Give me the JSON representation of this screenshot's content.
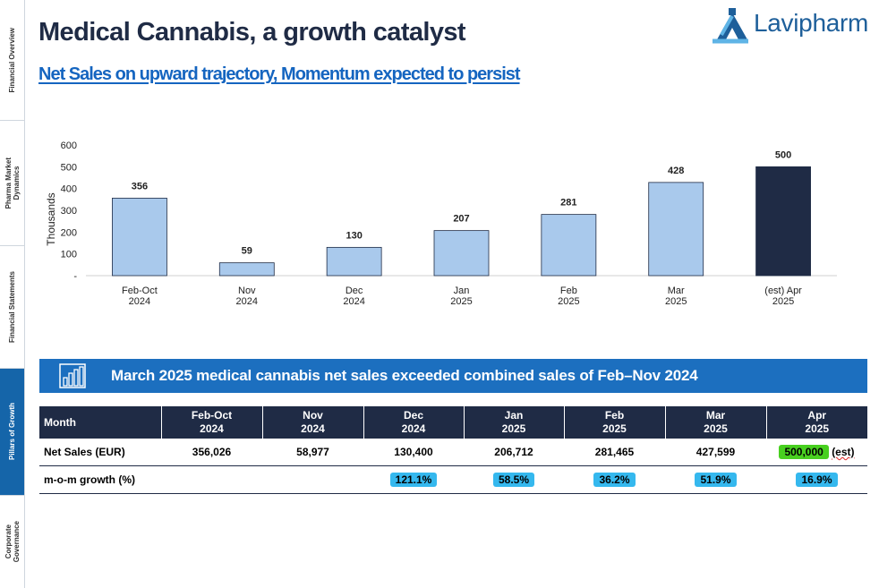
{
  "rail": {
    "tabs": [
      {
        "label": "Financial Overview",
        "active": false
      },
      {
        "label": "Pharma Market\nDynamics",
        "active": false
      },
      {
        "label": "Financial Statements",
        "active": false
      },
      {
        "label": "Pillars of Growth",
        "active": true
      },
      {
        "label": "Corporate\nGovernance",
        "active": false
      }
    ]
  },
  "header": {
    "title": "Medical Cannabis, a growth catalyst",
    "subtitle": "Net Sales on upward trajectory, Momentum expected to persist",
    "logo_text": "Lavipharm"
  },
  "chart_data": {
    "type": "bar",
    "categories": [
      [
        "Feb-Oct",
        "2024"
      ],
      [
        "Nov",
        "2024"
      ],
      [
        "Dec",
        "2024"
      ],
      [
        "Jan",
        "2025"
      ],
      [
        "Feb",
        "2025"
      ],
      [
        "Mar",
        "2025"
      ],
      [
        "(est) Apr",
        "2025"
      ]
    ],
    "values": [
      356,
      59,
      130,
      207,
      281,
      428,
      500
    ],
    "data_labels": [
      "356",
      "59",
      "130",
      "207",
      "281",
      "428",
      "500"
    ],
    "ylabel": "Thousands",
    "ylim": [
      0,
      600
    ],
    "yticks": [
      0,
      100,
      200,
      300,
      400,
      500,
      600
    ],
    "ytick_labels": [
      "-",
      "100",
      "200",
      "300",
      "400",
      "500",
      "600"
    ],
    "grid": false,
    "bar_color": "#a9c9ec",
    "highlight_color": "#1f2b45",
    "highlight_index": 6
  },
  "banner": {
    "text": "March 2025 medical cannabis net sales exceeded combined sales of Feb–Nov 2024",
    "icon": "bar-chart-icon"
  },
  "table": {
    "corner": "Month",
    "headers": [
      [
        "Feb-Oct",
        "2024"
      ],
      [
        "Nov",
        "2024"
      ],
      [
        "Dec",
        "2024"
      ],
      [
        "Jan",
        "2025"
      ],
      [
        "Feb",
        "2025"
      ],
      [
        "Mar",
        "2025"
      ],
      [
        "Apr",
        "2025"
      ]
    ],
    "rows": [
      {
        "label": "Net Sales (EUR)",
        "cells": [
          "356,026",
          "58,977",
          "130,400",
          "206,712",
          "281,465",
          "427,599",
          "500,000"
        ],
        "suffix": "(est)"
      },
      {
        "label": "m-o-m growth (%)",
        "cells": [
          "",
          "",
          "121.1%",
          "58.5%",
          "36.2%",
          "51.9%",
          "16.9%"
        ]
      }
    ]
  },
  "colors": {
    "navy": "#1f2b45",
    "accent_blue": "#1565c0",
    "banner_blue": "#1c6fbf",
    "highlight_blue": "#35b8ee",
    "highlight_green": "#48d01f"
  }
}
